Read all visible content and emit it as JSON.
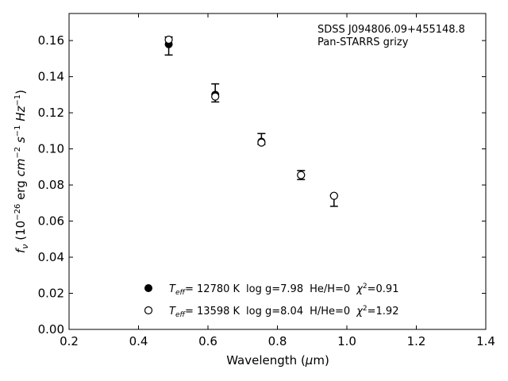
{
  "chart_data": {
    "type": "scatter",
    "annotation": [
      "SDSS J094806.09+455148.8",
      "Pan-STARRS grizy"
    ],
    "xlim": [
      0.2,
      1.4
    ],
    "ylim": [
      0.0,
      0.175
    ],
    "xticks": [
      "0.2",
      "0.4",
      "0.6",
      "0.8",
      "1.0",
      "1.2",
      "1.4"
    ],
    "yticks": [
      "0.00",
      "0.02",
      "0.04",
      "0.06",
      "0.08",
      "0.10",
      "0.12",
      "0.14",
      "0.16"
    ],
    "grid": false,
    "legend_position": "bottom-center",
    "observed": {
      "x": [
        0.487,
        0.621,
        0.754,
        0.868,
        0.963
      ],
      "y": [
        0.157,
        0.131,
        0.1055,
        0.0855,
        0.0712
      ],
      "yerr": [
        0.005,
        0.005,
        0.003,
        0.0025,
        0.003
      ]
    },
    "series": [
      {
        "marker": "filled-circle",
        "legend": {
          "teff": "= 12780 K",
          "logg": "log g=7.98",
          "comp": "He/H=0",
          "chi": "=0.91"
        },
        "x": [
          0.487,
          0.621,
          0.754,
          0.868,
          0.963
        ],
        "y": [
          0.158,
          0.13,
          0.104,
          0.0855,
          0.074
        ]
      },
      {
        "marker": "open-circle",
        "legend": {
          "teff": "= 13598 K",
          "logg": "log g=8.04",
          "comp": "H/He=0",
          "chi": "=1.92"
        },
        "x": [
          0.487,
          0.621,
          0.754,
          0.868,
          0.963
        ],
        "y": [
          0.1605,
          0.129,
          0.1035,
          0.0855,
          0.074
        ]
      }
    ]
  }
}
